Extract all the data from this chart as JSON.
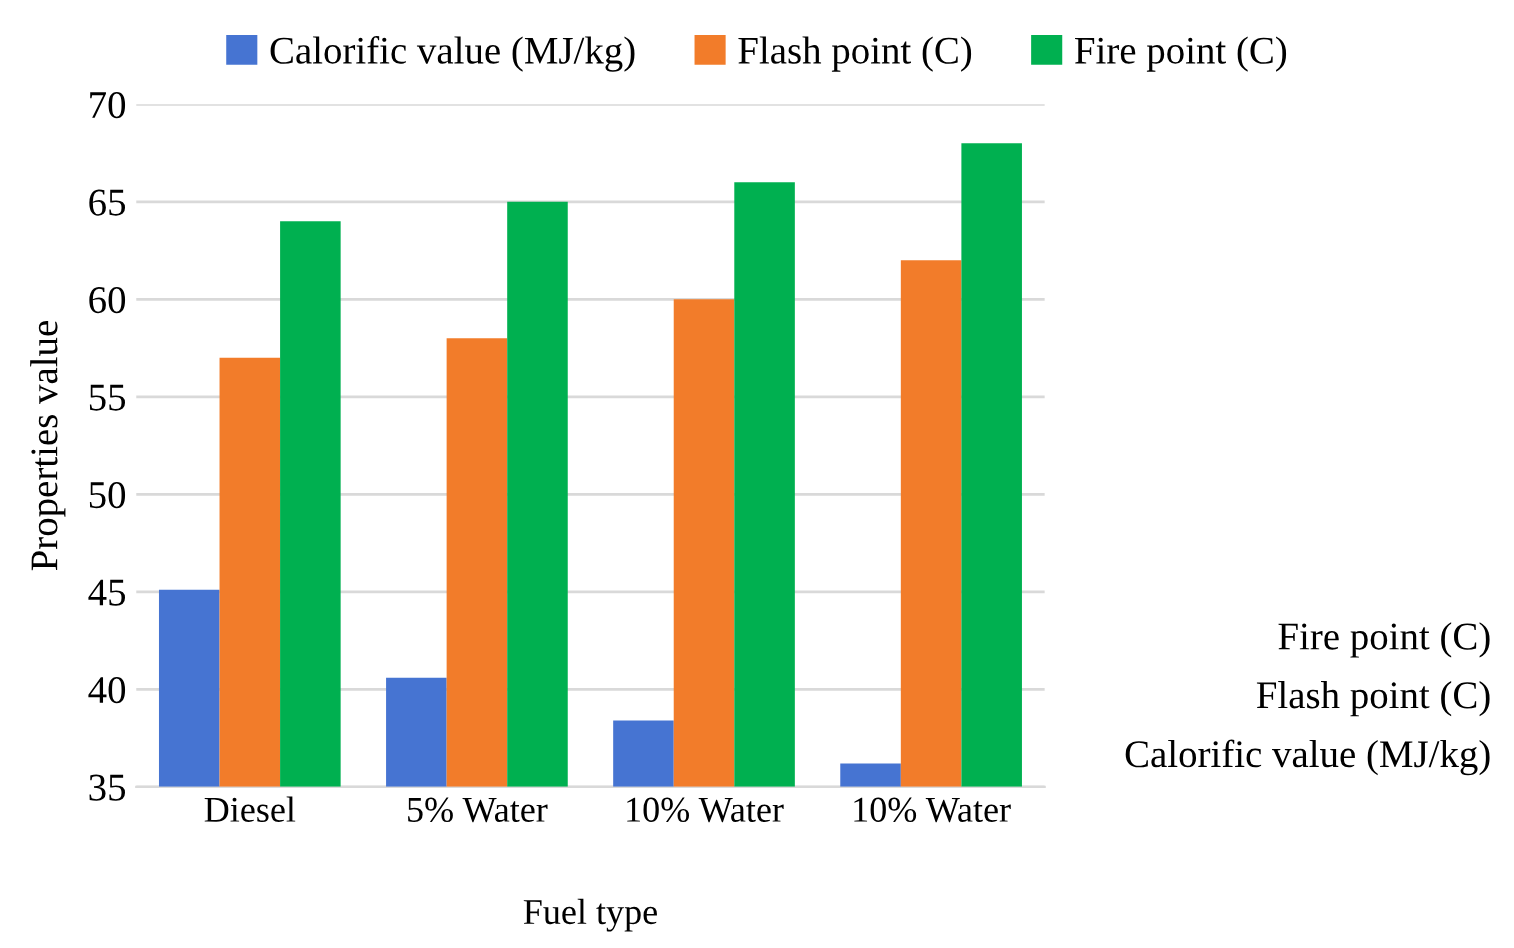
{
  "chart_data": {
    "type": "bar",
    "categories": [
      "Diesel",
      "5% Water",
      "10% Water",
      "10% Water"
    ],
    "series": [
      {
        "name": "Calorific value (MJ/kg)",
        "color": "#4674d2",
        "values": [
          45.1,
          40.6,
          38.4,
          36.2
        ]
      },
      {
        "name": "Flash point (C)",
        "color": "#f27c2a",
        "values": [
          57,
          58,
          60,
          62
        ]
      },
      {
        "name": "Fire point (C)",
        "color": "#00b050",
        "values": [
          64,
          65,
          66,
          68
        ]
      }
    ],
    "xlabel": "Fuel type",
    "ylabel": "Properties value",
    "ylim": [
      35,
      70
    ],
    "yticks": [
      35,
      40,
      45,
      50,
      55,
      60,
      65,
      70
    ],
    "grid": "y",
    "legend": "top"
  }
}
